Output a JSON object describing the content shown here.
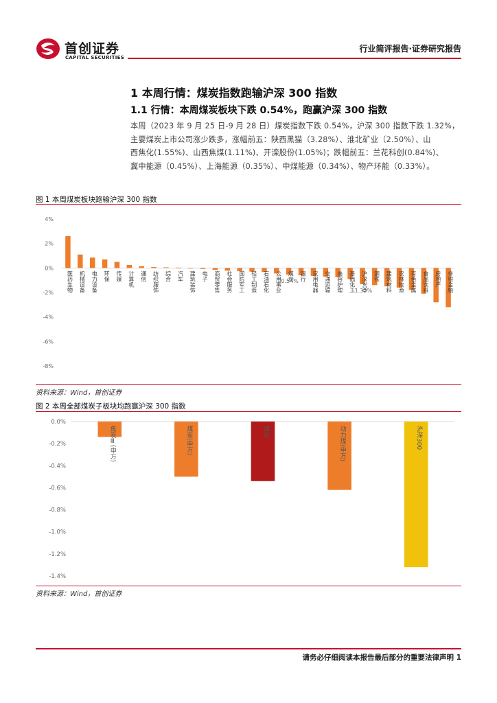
{
  "header": {
    "logo_cn": "首创证券",
    "logo_en": "CAPITAL SECURITIES",
    "report_type": "行业简评报告·证券研究报告"
  },
  "section": {
    "h1": "1 本周行情：煤炭指数跑输沪深 300 指数",
    "h2": "1.1 行情：本周煤炭板块下跌 0.54%，跑赢沪深 300 指数",
    "paragraph_lines": [
      "本周（2023 年 9 月 25 日-9 月 28 日）煤炭指数下跌 0.54%，沪深 300 指数下跌 1.32%，",
      "主要煤炭上市公司涨少跌多，涨幅前五：陕西黑猫（3.28%）、淮北矿业（2.50%）、山",
      "西焦化(1.55%)、山西焦煤(1.11%)、开滦股份(1.05%)；跌幅前五：兰花科创(0.84%)、",
      "冀中能源（0.45%）、上海能源（0.35%）、中煤能源（0.34%）、物产环能（0.33%）。"
    ]
  },
  "figure1": {
    "title": "图 1 本周煤炭板块跑输沪深 300 指数",
    "source": "资料来源：Wind，首创证券"
  },
  "figure2": {
    "title": "图 2 本周全部煤炭子板块均跑赢沪深 300 指数",
    "source": "资料来源：Wind，首创证券"
  },
  "footer": {
    "disclaimer": "请务必仔细阅读本报告最后部分的重要法律声明",
    "page": "1"
  },
  "colors": {
    "accent_red": "#c8102e",
    "bar_orange": "#ee7d2b",
    "bar_dark_red": "#b01a1a",
    "bar_yellow": "#f0c20c"
  },
  "chart_data": [
    {
      "type": "bar",
      "title": "",
      "ylim": [
        -8,
        4
      ],
      "yticks": [
        4,
        2,
        0,
        -2,
        -4,
        -6,
        -8
      ],
      "ytick_format": "%",
      "categories": [
        "医药生物",
        "机械设备",
        "电力设备",
        "环保",
        "传媒",
        "计算机",
        "通信",
        "纺织服饰",
        "综合",
        "汽车",
        "建筑装饰",
        "电子",
        "商贸零售",
        "社会服务",
        "国防军工",
        "轻工制造",
        "石油石化",
        "公用事业",
        "煤炭",
        "银行",
        "家用电器",
        "交通运输",
        "美容护理",
        "基础化工",
        "沪深300",
        "钢铁",
        "建筑材料",
        "农林牧渔",
        "有色金属",
        "食品饮料",
        "房地产",
        "非银金融"
      ],
      "values": [
        2.6,
        1.1,
        0.85,
        0.7,
        0.5,
        0.25,
        0.15,
        0.08,
        0.05,
        0.03,
        -0.03,
        -0.08,
        -0.15,
        -0.22,
        -0.26,
        -0.3,
        -0.33,
        -0.45,
        -0.54,
        -0.6,
        -0.65,
        -0.7,
        -0.75,
        -0.9,
        -1.32,
        -1.4,
        -1.5,
        -1.6,
        -1.8,
        -2.1,
        -2.8,
        -3.2
      ],
      "data_labels": [
        {
          "category": "煤炭",
          "label": "-0.54%"
        },
        {
          "category": "沪深300",
          "label": "-1.32%"
        }
      ]
    },
    {
      "type": "bar",
      "title": "",
      "ylim": [
        -1.4,
        0
      ],
      "yticks": [
        "0.0%",
        "-0.2%",
        "-0.4%",
        "-0.6%",
        "-0.8%",
        "-1.0%",
        "-1.2%",
        "-1.4%"
      ],
      "categories": [
        "焦炭Ⅲ(申万)",
        "煤炭(申万)",
        "煤炭",
        "动力煤(申万)",
        "沪深300"
      ],
      "values": [
        -0.14,
        -0.5,
        -0.54,
        -0.62,
        -1.32
      ]
    }
  ]
}
